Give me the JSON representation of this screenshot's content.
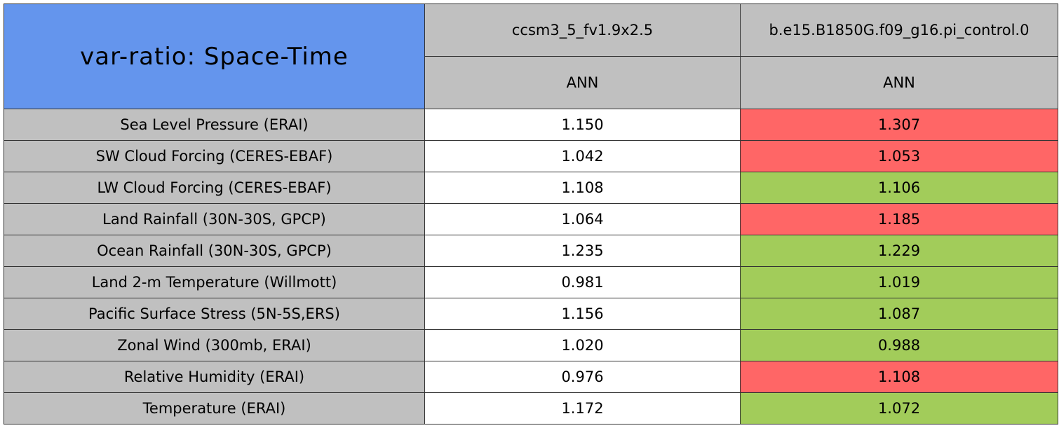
{
  "table": {
    "title": "var-ratio: Space-Time",
    "columns": [
      {
        "name": "ccsm3_5_fv1.9x2.5",
        "period": "ANN"
      },
      {
        "name": "b.e15.B1850G.f09_g16.pi_control.0",
        "period": "ANN"
      }
    ],
    "rows": [
      {
        "label": "Sea Level Pressure (ERAI)",
        "values": [
          "1.150",
          "1.307"
        ],
        "colors": [
          "#ffffff",
          "#ff6666"
        ]
      },
      {
        "label": "SW Cloud Forcing (CERES-EBAF)",
        "values": [
          "1.042",
          "1.053"
        ],
        "colors": [
          "#ffffff",
          "#ff6666"
        ]
      },
      {
        "label": "LW Cloud Forcing (CERES-EBAF)",
        "values": [
          "1.108",
          "1.106"
        ],
        "colors": [
          "#ffffff",
          "#a2cc5a"
        ]
      },
      {
        "label": "Land Rainfall (30N-30S, GPCP)",
        "values": [
          "1.064",
          "1.185"
        ],
        "colors": [
          "#ffffff",
          "#ff6666"
        ]
      },
      {
        "label": "Ocean Rainfall (30N-30S, GPCP)",
        "values": [
          "1.235",
          "1.229"
        ],
        "colors": [
          "#ffffff",
          "#a2cc5a"
        ]
      },
      {
        "label": "Land 2-m Temperature (Willmott)",
        "values": [
          "0.981",
          "1.019"
        ],
        "colors": [
          "#ffffff",
          "#a2cc5a"
        ]
      },
      {
        "label": "Pacific Surface Stress (5N-5S,ERS)",
        "values": [
          "1.156",
          "1.087"
        ],
        "colors": [
          "#ffffff",
          "#a2cc5a"
        ]
      },
      {
        "label": "Zonal Wind (300mb, ERAI)",
        "values": [
          "1.020",
          "0.988"
        ],
        "colors": [
          "#ffffff",
          "#a2cc5a"
        ]
      },
      {
        "label": "Relative Humidity (ERAI)",
        "values": [
          "0.976",
          "1.108"
        ],
        "colors": [
          "#ffffff",
          "#ff6666"
        ]
      },
      {
        "label": "Temperature (ERAI)",
        "values": [
          "1.172",
          "1.072"
        ],
        "colors": [
          "#ffffff",
          "#a2cc5a"
        ]
      }
    ]
  }
}
